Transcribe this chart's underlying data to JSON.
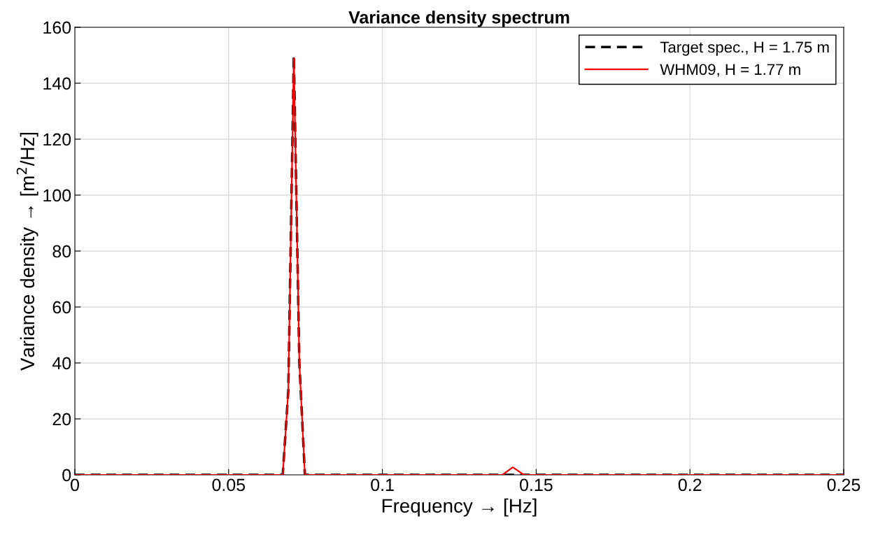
{
  "chart_data": {
    "type": "line",
    "title": "Variance density spectrum",
    "xlabel": "Frequency → [Hz]",
    "ylabel": "Variance density → [m$^{2}$/Hz]",
    "xlim": [
      0,
      0.25
    ],
    "xticks": [
      0,
      {
        "value": 0.05,
        "label": "0.05"
      },
      {
        "value": 0.1,
        "label": "0.1"
      },
      {
        "value": 0.15,
        "label": "0.15"
      },
      {
        "value": 0.2,
        "label": "0.2"
      },
      {
        "value": 0.25,
        "label": "0.25"
      }
    ],
    "ylim": [
      0,
      160
    ],
    "yticks": [
      0,
      20,
      40,
      60,
      80,
      100,
      120,
      140,
      160
    ],
    "grid": true,
    "legend": "top right",
    "series": [
      {
        "name": "Target spec., H = 1.75 m",
        "color": "#000000",
        "line_style": "dashed",
        "x": [
          0,
          0.0676,
          0.0694,
          0.0712,
          0.073,
          0.0748,
          0.25
        ],
        "values": [
          0,
          0,
          30,
          150,
          40,
          0,
          0
        ]
      },
      {
        "name": "WHM09, H = 1.77 m",
        "color": "#ff0000",
        "line_style": "solid",
        "x": [
          0,
          0.0676,
          0.0694,
          0.0712,
          0.073,
          0.0748,
          0.139,
          0.1424,
          0.146,
          0.25
        ],
        "values": [
          0,
          0,
          30,
          149,
          40,
          0,
          0,
          2.7,
          0,
          0
        ]
      }
    ]
  }
}
